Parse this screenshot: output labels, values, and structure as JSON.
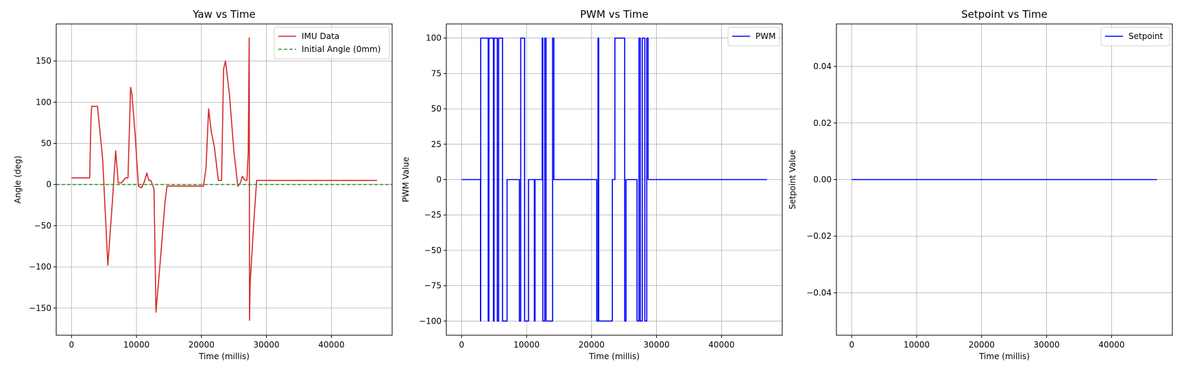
{
  "chart_data": [
    {
      "type": "line",
      "title": "Yaw vs Time",
      "xlabel": "Time (millis)",
      "ylabel": "Angle (deg)",
      "xlim": [
        -2350,
        49350
      ],
      "ylim": [
        -183,
        195
      ],
      "xticks": [
        0,
        10000,
        20000,
        30000,
        40000
      ],
      "xtick_labels": [
        "0",
        "10000",
        "20000",
        "30000",
        "40000"
      ],
      "yticks": [
        -150,
        -100,
        -50,
        0,
        50,
        100,
        150
      ],
      "ytick_labels": [
        "−150",
        "−100",
        "−50",
        "0",
        "50",
        "100",
        "150"
      ],
      "grid": true,
      "legend_position": "top-right",
      "series": [
        {
          "name": "IMU Data",
          "color": "#d62728",
          "style": "solid",
          "x": [
            0,
            2800,
            3000,
            3100,
            4000,
            4800,
            5600,
            6300,
            6800,
            7200,
            7700,
            8300,
            8700,
            9100,
            9300,
            9800,
            10300,
            10800,
            11200,
            11600,
            11900,
            12200,
            12700,
            13000,
            13700,
            14400,
            14700,
            16000,
            20300,
            20700,
            21100,
            21500,
            22000,
            22600,
            23100,
            23400,
            23700,
            24300,
            25000,
            25600,
            26000,
            26300,
            26700,
            27000,
            27200,
            27350,
            27400,
            27500,
            28100,
            28500,
            29000,
            40000,
            47000
          ],
          "y": [
            8,
            8,
            80,
            95,
            95,
            30,
            -98,
            -20,
            41,
            2,
            2,
            8,
            8,
            118,
            110,
            60,
            -2,
            -4,
            3,
            14,
            5,
            5,
            -5,
            -155,
            -90,
            -20,
            -2,
            -2,
            -2,
            20,
            92,
            65,
            45,
            5,
            5,
            140,
            150,
            110,
            40,
            -2,
            2,
            10,
            5,
            5,
            40,
            178,
            -165,
            -120,
            -40,
            5,
            5,
            5,
            5
          ]
        },
        {
          "name": "Initial Angle (0mm)",
          "color": "#2ca02c",
          "style": "dashed",
          "x": [
            -2350,
            49350
          ],
          "y": [
            0,
            0
          ]
        }
      ]
    },
    {
      "type": "line",
      "title": "PWM vs Time",
      "xlabel": "Time (millis)",
      "ylabel": "PWM Value",
      "xlim": [
        -2350,
        49350
      ],
      "ylim": [
        -110,
        110
      ],
      "xticks": [
        0,
        10000,
        20000,
        30000,
        40000
      ],
      "xtick_labels": [
        "0",
        "10000",
        "20000",
        "30000",
        "40000"
      ],
      "yticks": [
        -100,
        -75,
        -50,
        -25,
        0,
        25,
        50,
        75,
        100
      ],
      "ytick_labels": [
        "−100",
        "−75",
        "−50",
        "−25",
        "0",
        "25",
        "50",
        "75",
        "100"
      ],
      "grid": true,
      "legend_position": "top-right",
      "step": true,
      "series": [
        {
          "name": "PWM",
          "color": "#0000ff",
          "style": "solid",
          "x": [
            0,
            2900,
            2950,
            3050,
            4100,
            4200,
            4900,
            5000,
            5500,
            5700,
            6300,
            7000,
            7200,
            8900,
            9100,
            9700,
            10300,
            10500,
            11200,
            11300,
            12400,
            12500,
            12800,
            13000,
            14000,
            14200,
            14600,
            14800,
            20800,
            21000,
            21100,
            21300,
            21450,
            23200,
            23600,
            23800,
            24500,
            25100,
            25300,
            26500,
            27000,
            27300,
            27500,
            27800,
            28200,
            28500,
            28700,
            47000
          ],
          "y": [
            0,
            -100,
            100,
            100,
            -100,
            100,
            -100,
            100,
            -100,
            100,
            -100,
            0,
            0,
            -100,
            100,
            -100,
            0,
            0,
            -100,
            0,
            100,
            -100,
            100,
            -100,
            100,
            0,
            0,
            0,
            -100,
            100,
            -100,
            -100,
            -100,
            0,
            100,
            100,
            100,
            -100,
            0,
            0,
            -100,
            100,
            -100,
            100,
            -100,
            100,
            0,
            0
          ]
        }
      ]
    },
    {
      "type": "line",
      "title": "Setpoint vs Time",
      "xlabel": "Time (millis)",
      "ylabel": "Setpoint Value",
      "xlim": [
        -2350,
        49350
      ],
      "ylim": [
        -0.055,
        0.055
      ],
      "xticks": [
        0,
        10000,
        20000,
        30000,
        40000
      ],
      "xtick_labels": [
        "0",
        "10000",
        "20000",
        "30000",
        "40000"
      ],
      "yticks": [
        -0.04,
        -0.02,
        0.0,
        0.02,
        0.04
      ],
      "ytick_labels": [
        "−0.04",
        "−0.02",
        "0.00",
        "0.02",
        "0.04"
      ],
      "grid": true,
      "legend_position": "top-right",
      "series": [
        {
          "name": "Setpoint",
          "color": "#0000ff",
          "style": "solid",
          "x": [
            0,
            47000
          ],
          "y": [
            0,
            0
          ]
        }
      ]
    }
  ]
}
